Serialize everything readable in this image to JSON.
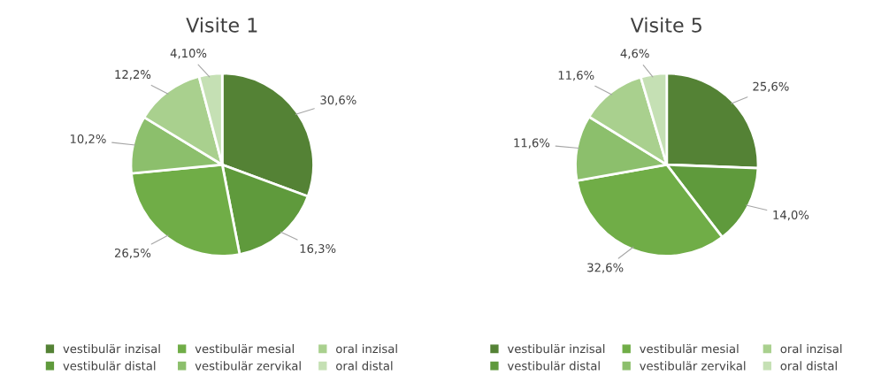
{
  "chart_data": [
    {
      "type": "pie",
      "title": "Visite 1",
      "categories": [
        "vestibulär inzisal",
        "vestibulär distal",
        "vestibulär mesial",
        "vestibulär zervikal",
        "oral inzisal",
        "oral distal"
      ],
      "values": [
        30.6,
        16.3,
        26.5,
        10.2,
        12.2,
        4.1
      ],
      "value_labels": [
        "30,6%",
        "16,3%",
        "26,5%",
        "10,2%",
        "12,2%",
        "4,10%"
      ],
      "colors": [
        "#548235",
        "#5f9a3c",
        "#70ad47",
        "#8cbf6c",
        "#a9d08e",
        "#c5e0b4"
      ],
      "legend": "bottom"
    },
    {
      "type": "pie",
      "title": "Visite 5",
      "categories": [
        "vestibulär inzisal",
        "vestibulär distal",
        "vestibulär mesial",
        "vestibulär zervikal",
        "oral inzisal",
        "oral distal"
      ],
      "values": [
        25.6,
        14.0,
        32.6,
        11.6,
        11.6,
        4.6
      ],
      "value_labels": [
        "25,6%",
        "14,0%",
        "32,6%",
        "11,6%",
        "11,6%",
        "4,6%"
      ],
      "colors": [
        "#548235",
        "#5f9a3c",
        "#70ad47",
        "#8cbf6c",
        "#a9d08e",
        "#c5e0b4"
      ],
      "legend": "bottom"
    }
  ]
}
